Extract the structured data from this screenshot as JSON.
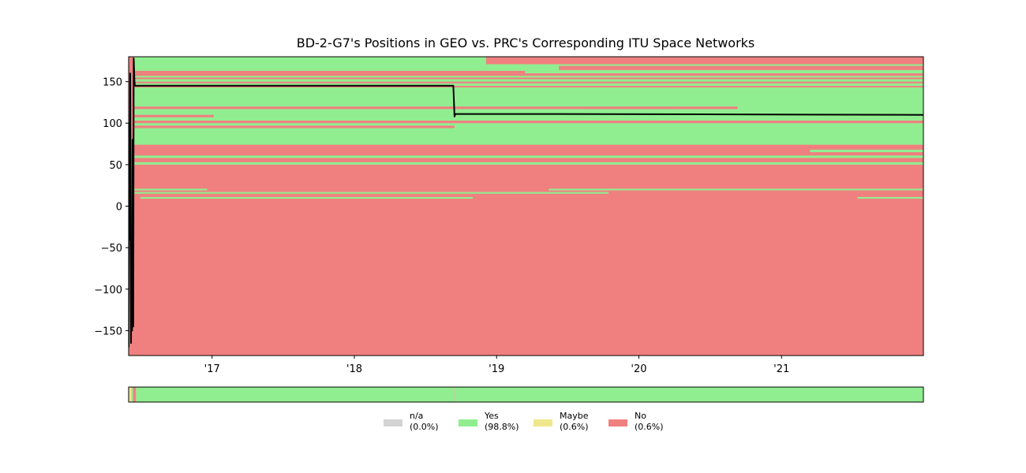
{
  "chart_data": {
    "type": "area",
    "title": "BD-2-G7's Positions in GEO vs. PRC's Corresponding ITU Space Networks",
    "xlabel": "",
    "ylabel": "",
    "x_range": [
      "2016-06-01",
      "2021-12-31"
    ],
    "ylim": [
      -180,
      180
    ],
    "grid": false,
    "x_ticks": [
      {
        "date": "2017-01-01",
        "label": "'17"
      },
      {
        "date": "2018-01-01",
        "label": "'18"
      },
      {
        "date": "2019-01-01",
        "label": "'19"
      },
      {
        "date": "2020-01-01",
        "label": "'20"
      },
      {
        "date": "2021-01-01",
        "label": "'21"
      }
    ],
    "y_ticks": [
      {
        "value": 150,
        "label": "150"
      },
      {
        "value": 100,
        "label": "100"
      },
      {
        "value": 50,
        "label": "50"
      },
      {
        "value": 0,
        "label": "0"
      },
      {
        "value": -50,
        "label": "−50"
      },
      {
        "value": -100,
        "label": "−100"
      },
      {
        "value": -150,
        "label": "−150"
      }
    ],
    "background_status": "No",
    "network_bands": [
      {
        "y0": 74,
        "y1": 143,
        "start": "2016-06-15",
        "end": "2021-12-31",
        "status": "Yes"
      },
      {
        "y0": 160,
        "y1": 180,
        "start": "2016-06-15",
        "end": "2021-12-31",
        "status": "Yes"
      },
      {
        "y0": 145,
        "y1": 148,
        "start": "2016-06-15",
        "end": "2021-12-31",
        "status": "Yes"
      },
      {
        "y0": 150,
        "y1": 153,
        "start": "2016-06-15",
        "end": "2021-12-31",
        "status": "Yes"
      },
      {
        "y0": 155,
        "y1": 157,
        "start": "2016-06-15",
        "end": "2021-12-31",
        "status": "Yes"
      },
      {
        "y0": 171,
        "y1": 180,
        "start": "2018-12-05",
        "end": "2021-12-31",
        "status": "No"
      },
      {
        "y0": 164,
        "y1": 169,
        "start": "2019-06-10",
        "end": "2021-12-31",
        "status": "No"
      },
      {
        "y0": 160,
        "y1": 163,
        "start": "2016-06-15",
        "end": "2019-03-15",
        "status": "No"
      },
      {
        "y0": 117,
        "y1": 120,
        "start": "2016-06-15",
        "end": "2020-09-10",
        "status": "No"
      },
      {
        "y0": 107,
        "y1": 110,
        "start": "2016-06-15",
        "end": "2017-01-05",
        "status": "No"
      },
      {
        "y0": 94,
        "y1": 97,
        "start": "2016-06-15",
        "end": "2018-09-15",
        "status": "No"
      },
      {
        "y0": 100,
        "y1": 103,
        "start": "2016-06-15",
        "end": "2021-12-31",
        "status": "No"
      },
      {
        "y0": 65,
        "y1": 68,
        "start": "2021-03-15",
        "end": "2021-12-31",
        "status": "Yes"
      },
      {
        "y0": 58,
        "y1": 61,
        "start": "2016-06-15",
        "end": "2021-12-31",
        "status": "Yes"
      },
      {
        "y0": 50,
        "y1": 53,
        "start": "2016-06-15",
        "end": "2021-12-31",
        "status": "Yes"
      },
      {
        "y0": 19,
        "y1": 21,
        "start": "2016-06-15",
        "end": "2016-12-20",
        "status": "Yes"
      },
      {
        "y0": 19,
        "y1": 21,
        "start": "2019-05-15",
        "end": "2021-12-31",
        "status": "Yes"
      },
      {
        "y0": 15,
        "y1": 17,
        "start": "2016-06-15",
        "end": "2019-10-15",
        "status": "Yes"
      },
      {
        "y0": 9,
        "y1": 11,
        "start": "2016-07-01",
        "end": "2018-11-01",
        "status": "Yes"
      },
      {
        "y0": 9,
        "y1": 11,
        "start": "2021-07-15",
        "end": "2021-12-31",
        "status": "Yes"
      }
    ],
    "series": [
      {
        "name": "",
        "color": "#000000",
        "x": [
          "2016-06-01",
          "2016-06-02",
          "2016-06-04",
          "2016-06-05",
          "2016-06-07",
          "2016-06-08",
          "2016-06-10",
          "2016-06-11",
          "2016-06-13",
          "2016-06-14",
          "2016-06-16",
          "2016-06-17",
          "2016-06-18",
          "2016-06-20",
          "2018-09-12",
          "2018-09-15",
          "2018-09-17",
          "2019-06-01",
          "2021-12-31"
        ],
        "y": [
          -170,
          100,
          -40,
          160,
          -165,
          -80,
          -150,
          80,
          -145,
          178,
          150,
          146,
          145,
          145,
          145,
          108,
          111,
          111,
          110
        ]
      }
    ],
    "summary_bar": {
      "segments": [
        {
          "start": "2016-06-01",
          "end": "2016-06-08",
          "status": "Maybe"
        },
        {
          "start": "2016-06-08",
          "end": "2016-06-12",
          "status": "Yes"
        },
        {
          "start": "2016-06-12",
          "end": "2016-06-20",
          "status": "No"
        },
        {
          "start": "2016-06-20",
          "end": "2021-12-31",
          "status": "Yes"
        }
      ],
      "marker_date": "2018-09-15"
    },
    "legend": {
      "placement": "bottom-center",
      "items": [
        {
          "label": "n/a",
          "pct": "(0.0%)",
          "color": "#d3d3d3"
        },
        {
          "label": "Yes",
          "pct": "(98.8%)",
          "color": "#90ee90"
        },
        {
          "label": "Maybe",
          "pct": "(0.6%)",
          "color": "#f0e68c"
        },
        {
          "label": "No",
          "pct": "(0.6%)",
          "color": "#f08080"
        }
      ]
    },
    "status_colors": {
      "Yes": "#90ee90",
      "No": "#f08080",
      "Maybe": "#f0e68c",
      "n/a": "#d3d3d3"
    }
  }
}
